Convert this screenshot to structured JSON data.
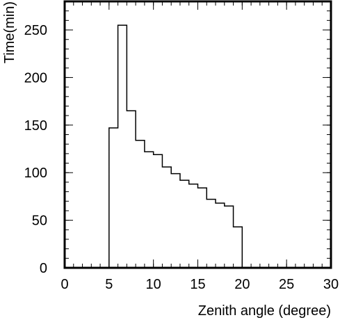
{
  "chart_data": {
    "type": "bar",
    "style": "step-histogram",
    "title": "",
    "xlabel": "Zenith angle (degree)",
    "ylabel": "Time(min)",
    "xlim": [
      0,
      30
    ],
    "ylim": [
      0,
      280
    ],
    "xticks": [
      0,
      5,
      10,
      15,
      20,
      25,
      30
    ],
    "yticks": [
      0,
      50,
      100,
      150,
      200,
      250
    ],
    "xminor_step": 1,
    "yminor_step": 10,
    "grid": false,
    "bin_edges": [
      5,
      6,
      7,
      8,
      9,
      10,
      11,
      12,
      13,
      14,
      15,
      16,
      17,
      18,
      19,
      20
    ],
    "values": [
      147,
      255,
      165,
      134,
      122,
      119,
      106,
      99,
      92,
      88,
      84,
      72,
      68,
      65,
      43
    ],
    "line_color": "#000000"
  }
}
